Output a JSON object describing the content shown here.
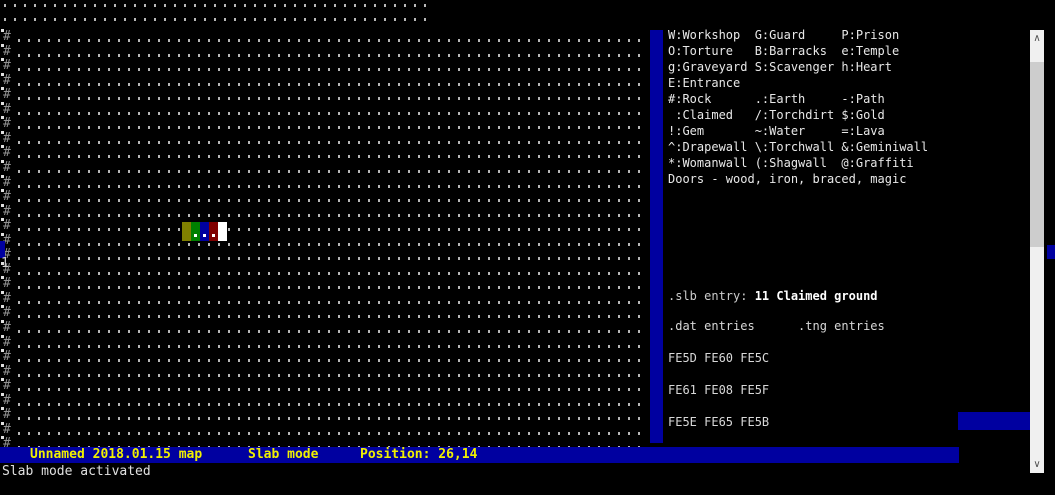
{
  "window": {
    "bg": "#000000"
  },
  "map": {
    "rock_char": "#",
    "row_label": "1",
    "earth_rows": 2,
    "earth_row_cols": 43,
    "hash_rows": 29,
    "hash_row_cols": 63,
    "colors": {
      "rock": "#909090",
      "earth_dot": "#b8b8b8",
      "gutter_dot": "#e0e0e0",
      "marker_blue": "#0000a0"
    },
    "cursor_blocks": [
      {
        "name": "olive",
        "color": "#808000",
        "dot": false
      },
      {
        "name": "green",
        "color": "#008000",
        "dot": true
      },
      {
        "name": "blue",
        "color": "#0000a0",
        "dot": true
      },
      {
        "name": "maroon",
        "color": "#800000",
        "dot": true
      },
      {
        "name": "white",
        "color": "#ffffff",
        "dot": false
      }
    ]
  },
  "legend": {
    "lines": [
      "W:Workshop  G:Guard     P:Prison",
      "O:Torture   B:Barracks  e:Temple",
      "g:Graveyard S:Scavenger h:Heart",
      "E:Entrance",
      "#:Rock      .:Earth     -:Path",
      " :Claimed   /:Torchdirt $:Gold",
      "!:Gem       ~:Water     =:Lava",
      "^:Drapewall \\:Torchwall &:Geminiwall",
      "*:Womanwall (:Shagwall  @:Graffiti",
      "Doors - wood, iron, braced, magic"
    ]
  },
  "info": {
    "slb_label": ".slb entry: ",
    "slb_value": "11 Claimed ground",
    "columns_header": ".dat entries      .tng entries",
    "entries": [
      "FE5D FE60 FE5C",
      "FE61 FE08 FE5F",
      "FE5E FE65 FE5B"
    ]
  },
  "status_bar": {
    "map_name": "Unnamed 2018.01.15 map",
    "mode": "Slab mode",
    "position": "Position: 26,14",
    "bg": "#0000a0",
    "fg": "#f0f000"
  },
  "message": "Slab mode activated",
  "scrollbar": {
    "up_icon": "∧",
    "down_icon": "∨"
  }
}
